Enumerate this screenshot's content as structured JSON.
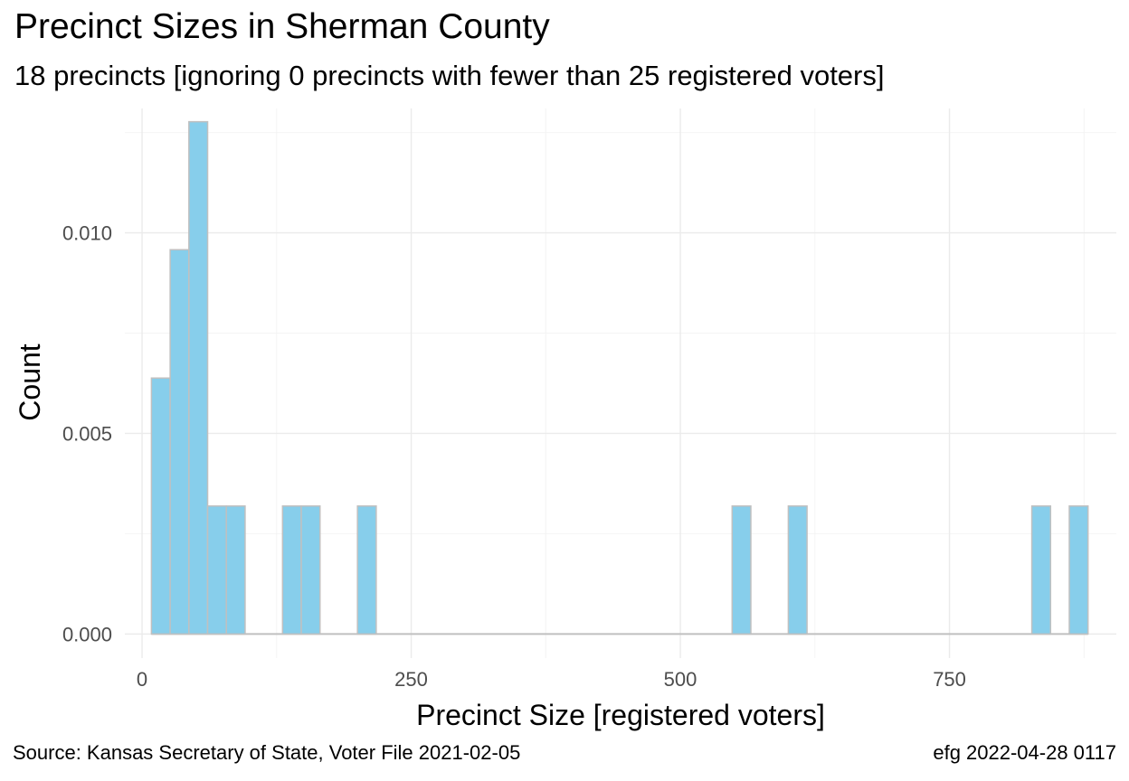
{
  "title": "Precinct Sizes in Sherman County",
  "subtitle": "18 precincts [ignoring 0 precincts with fewer than 25 registered voters]",
  "caption_left": "Source:  Kansas Secretary of State, Voter File  2021-02-05",
  "caption_right": "efg 2022-04-28 0117",
  "colors": {
    "bar_fill": "#87CEEB",
    "bar_stroke": "#C0C0C0",
    "grid_major": "#EBEBEB",
    "grid_minor": "#F4F4F4",
    "tick_text": "#4D4D4D"
  },
  "chart_data": {
    "type": "bar",
    "title": "Precinct Sizes in Sherman County",
    "subtitle": "18 precincts [ignoring 0 precincts with fewer than 25 registered voters]",
    "xlabel": "Precinct Size [registered voters]",
    "ylabel": "Count",
    "xlim": [
      -16,
      905
    ],
    "ylim": [
      -0.0006,
      0.0131
    ],
    "x_ticks": [
      0,
      250,
      500,
      750
    ],
    "x_tick_labels": [
      "0",
      "250",
      "500",
      "750"
    ],
    "y_ticks": [
      0.0,
      0.005,
      0.01
    ],
    "y_tick_labels": [
      "0.000",
      "0.005",
      "0.010"
    ],
    "bin_width": 17.4,
    "bins": [
      {
        "x_start": 8.7,
        "x_end": 26.1,
        "value": 0.00638
      },
      {
        "x_start": 26.1,
        "x_end": 43.5,
        "value": 0.00958
      },
      {
        "x_start": 43.5,
        "x_end": 60.9,
        "value": 0.01277
      },
      {
        "x_start": 60.9,
        "x_end": 78.3,
        "value": 0.00319
      },
      {
        "x_start": 78.3,
        "x_end": 95.7,
        "value": 0.00319
      },
      {
        "x_start": 130.5,
        "x_end": 147.9,
        "value": 0.00319
      },
      {
        "x_start": 147.9,
        "x_end": 165.3,
        "value": 0.00319
      },
      {
        "x_start": 200.1,
        "x_end": 217.5,
        "value": 0.00319
      },
      {
        "x_start": 548.1,
        "x_end": 565.5,
        "value": 0.00319
      },
      {
        "x_start": 600.3,
        "x_end": 617.7,
        "value": 0.00319
      },
      {
        "x_start": 826.5,
        "x_end": 843.9,
        "value": 0.00319
      },
      {
        "x_start": 861.3,
        "x_end": 878.7,
        "value": 0.00319
      }
    ],
    "baseline": {
      "x_start": 8.7,
      "x_end": 878.7,
      "value": 0
    },
    "grid": true,
    "legend": "none"
  }
}
